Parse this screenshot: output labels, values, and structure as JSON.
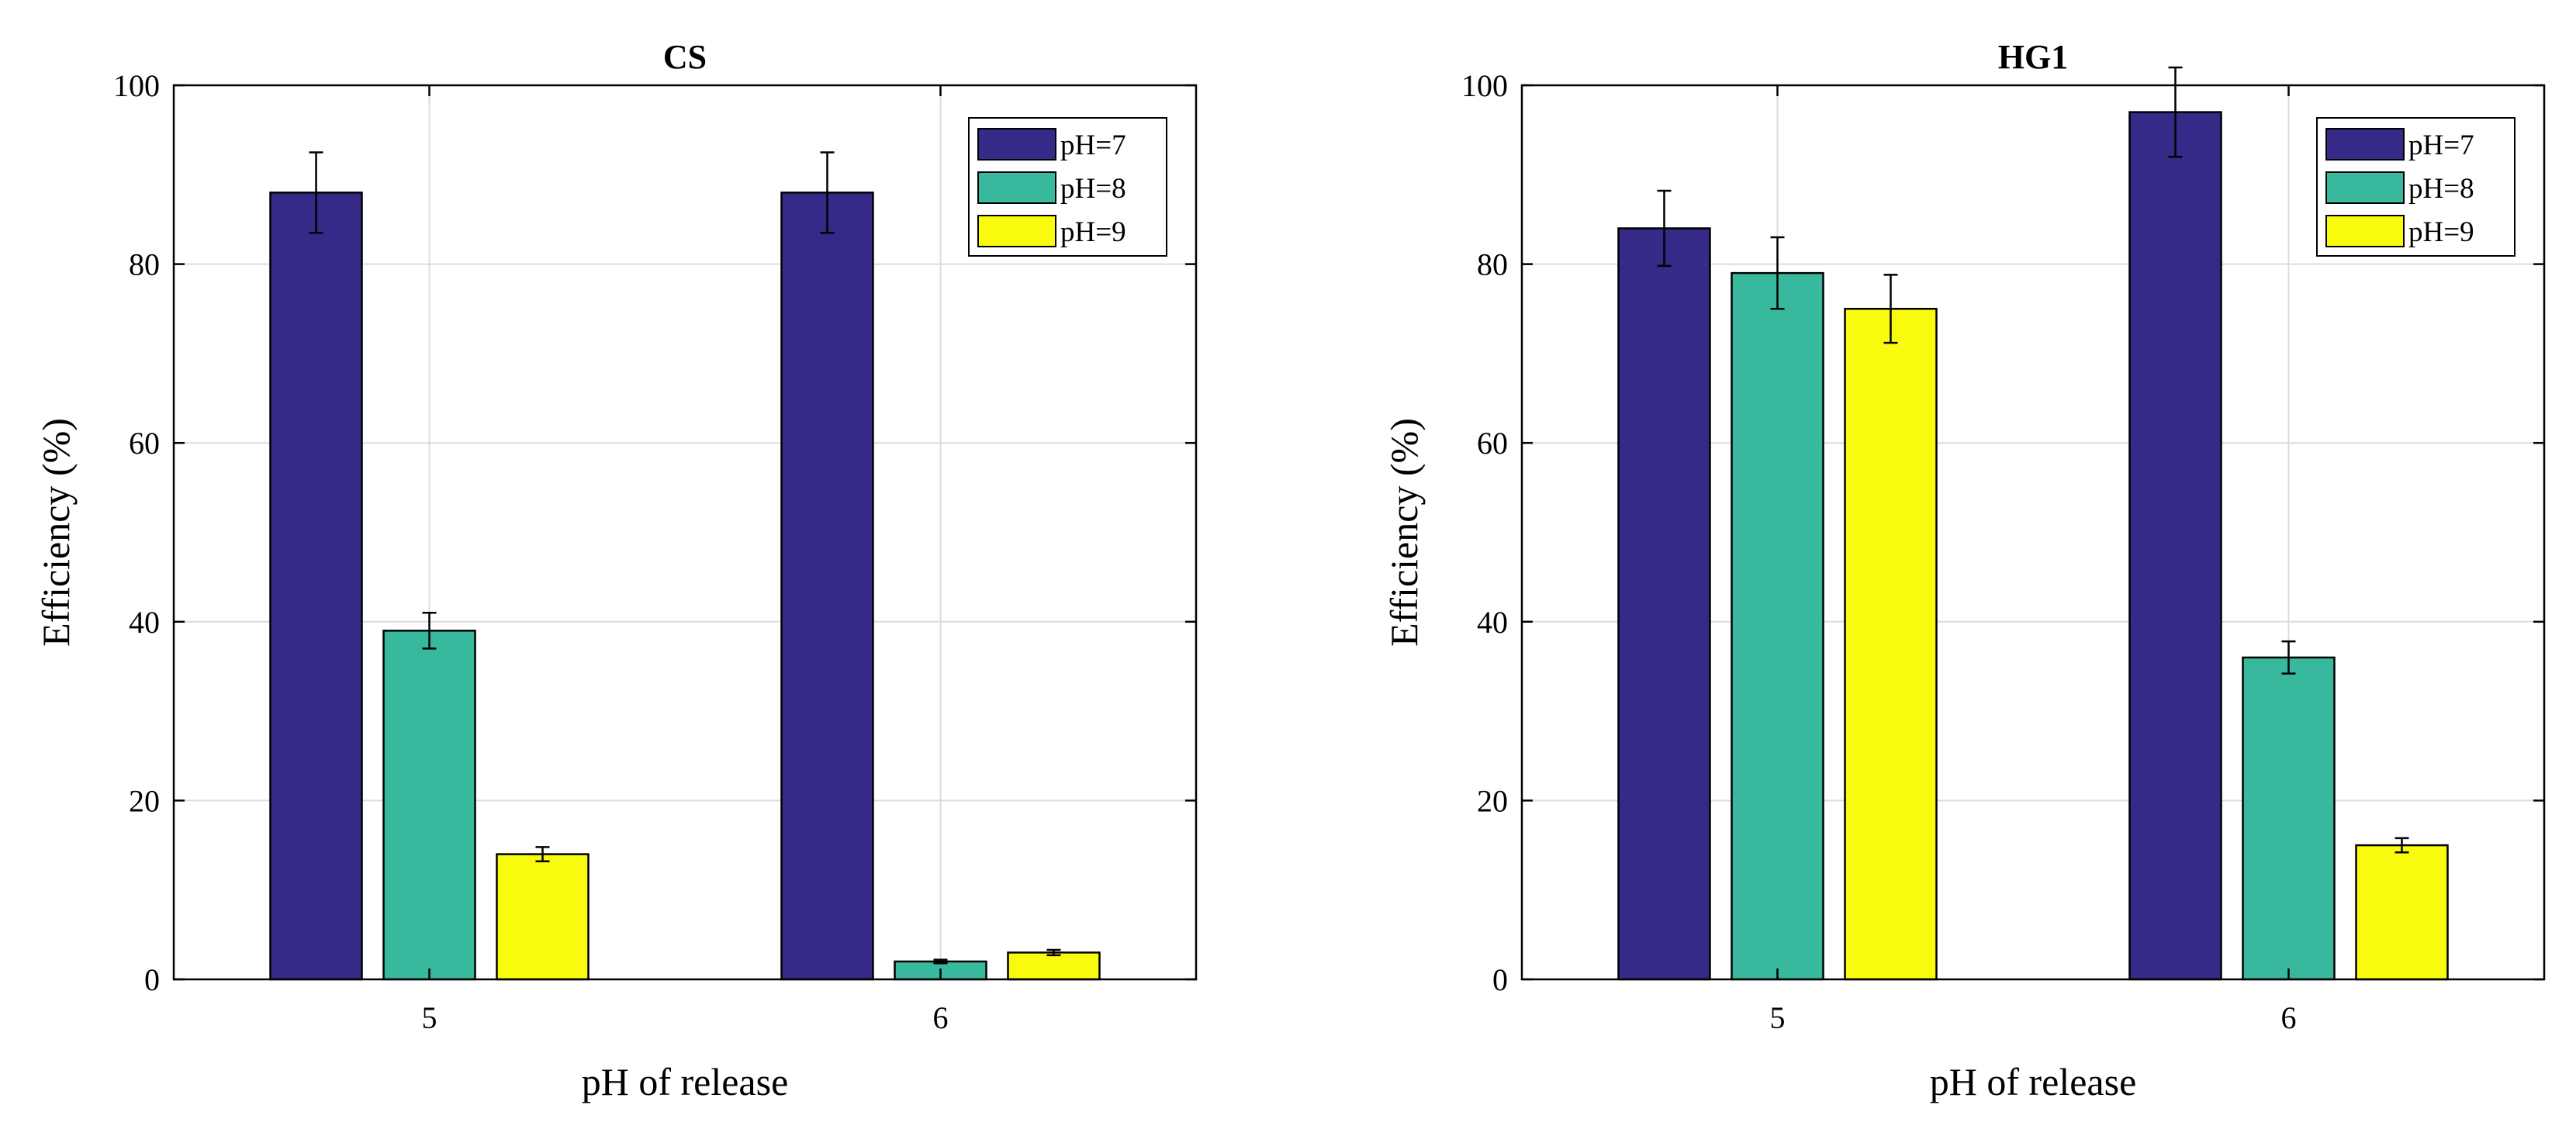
{
  "colors": {
    "ph7": "#352a87",
    "ph8": "#38b99e",
    "ph9": "#f9fb0e",
    "grid": "#dcdcdc",
    "axis": "#000000"
  },
  "chart_data": [
    {
      "type": "bar",
      "title": "CS",
      "xlabel": "pH of release",
      "ylabel": "Efficiency (%)",
      "categories": [
        "5",
        "6"
      ],
      "ylim": [
        0,
        100
      ],
      "yticks": [
        "0",
        "20",
        "40",
        "60",
        "80",
        "100"
      ],
      "grid": true,
      "legend_position": "top-right",
      "series": [
        {
          "name": "pH=7",
          "values": [
            88,
            88
          ],
          "errors": [
            4.5,
            4.5
          ]
        },
        {
          "name": "pH=8",
          "values": [
            39,
            2
          ],
          "errors": [
            2,
            0.2
          ]
        },
        {
          "name": "pH=9",
          "values": [
            14,
            3
          ],
          "errors": [
            0.8,
            0.3
          ]
        }
      ]
    },
    {
      "type": "bar",
      "title": "HG1",
      "xlabel": "pH of release",
      "ylabel": "Efficiency (%)",
      "categories": [
        "5",
        "6"
      ],
      "ylim": [
        0,
        100
      ],
      "yticks": [
        "0",
        "20",
        "40",
        "60",
        "80",
        "100"
      ],
      "grid": true,
      "legend_position": "top-right",
      "series": [
        {
          "name": "pH=7",
          "values": [
            84,
            97
          ],
          "errors": [
            4.2,
            5
          ]
        },
        {
          "name": "pH=8",
          "values": [
            79,
            36
          ],
          "errors": [
            4,
            1.8
          ]
        },
        {
          "name": "pH=9",
          "values": [
            75,
            15
          ],
          "errors": [
            3.8,
            0.8
          ]
        }
      ]
    }
  ]
}
